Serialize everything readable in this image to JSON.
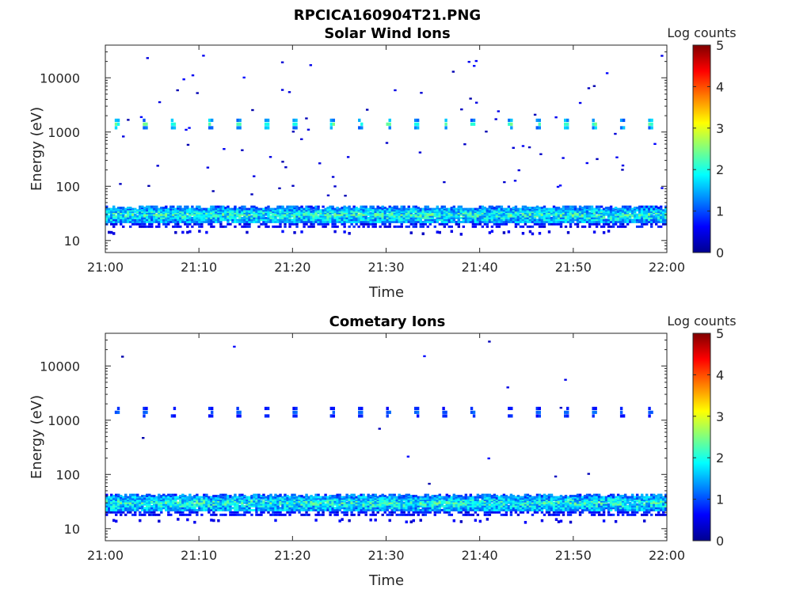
{
  "figure_title": "RPCICA160904T21.PNG",
  "chart_data": [
    {
      "type": "heatmap",
      "title": "Solar Wind Ions",
      "xlabel": "Time",
      "ylabel": "Energy (eV)",
      "x_ticks": [
        "21:00",
        "21:10",
        "21:20",
        "21:30",
        "21:40",
        "21:50",
        "22:00"
      ],
      "x_range": [
        "21:00",
        "22:00"
      ],
      "y_scale": "log",
      "y_ticks": [
        "10",
        "100",
        "1000",
        "10000"
      ],
      "y_range": [
        6,
        40000
      ],
      "colorbar_label": "Log counts",
      "colorbar_ticks": [
        "0",
        "1",
        "2",
        "3",
        "4",
        "5"
      ],
      "colorbar_range": [
        0,
        5
      ],
      "colormap": "jet",
      "features": [
        {
          "name": "low-energy band",
          "energy_range_eV": [
            18,
            45
          ],
          "log_counts": [
            0.5,
            2.7
          ]
        },
        {
          "name": "solar wind beam",
          "energy_eV": 1400,
          "log_counts": [
            1.0,
            2.5
          ],
          "times": [
            "21:01",
            "21:04",
            "21:07",
            "21:11",
            "21:14",
            "21:17",
            "21:20",
            "21:24",
            "21:27",
            "21:30",
            "21:33",
            "21:36",
            "21:39",
            "21:43",
            "21:46",
            "21:49",
            "21:52",
            "21:55",
            "21:58"
          ]
        }
      ]
    },
    {
      "type": "heatmap",
      "title": "Cometary Ions",
      "xlabel": "Time",
      "ylabel": "Energy (eV)",
      "x_ticks": [
        "21:00",
        "21:10",
        "21:20",
        "21:30",
        "21:40",
        "21:50",
        "22:00"
      ],
      "x_range": [
        "21:00",
        "22:00"
      ],
      "y_scale": "log",
      "y_ticks": [
        "10",
        "100",
        "1000",
        "10000"
      ],
      "y_range": [
        6,
        40000
      ],
      "colorbar_label": "Log counts",
      "colorbar_ticks": [
        "0",
        "1",
        "2",
        "3",
        "4",
        "5"
      ],
      "colorbar_range": [
        0,
        5
      ],
      "colormap": "jet",
      "features": [
        {
          "name": "low-energy band",
          "energy_range_eV": [
            18,
            45
          ],
          "log_counts": [
            0.5,
            2.7
          ]
        },
        {
          "name": "solar wind beam",
          "energy_eV": 1400,
          "log_counts": [
            0.6,
            1.2
          ],
          "times": [
            "21:01",
            "21:04",
            "21:07",
            "21:11",
            "21:14",
            "21:17",
            "21:20",
            "21:24",
            "21:27",
            "21:30",
            "21:33",
            "21:36",
            "21:39",
            "21:43",
            "21:46",
            "21:49",
            "21:52",
            "21:55",
            "21:58"
          ]
        }
      ]
    }
  ]
}
